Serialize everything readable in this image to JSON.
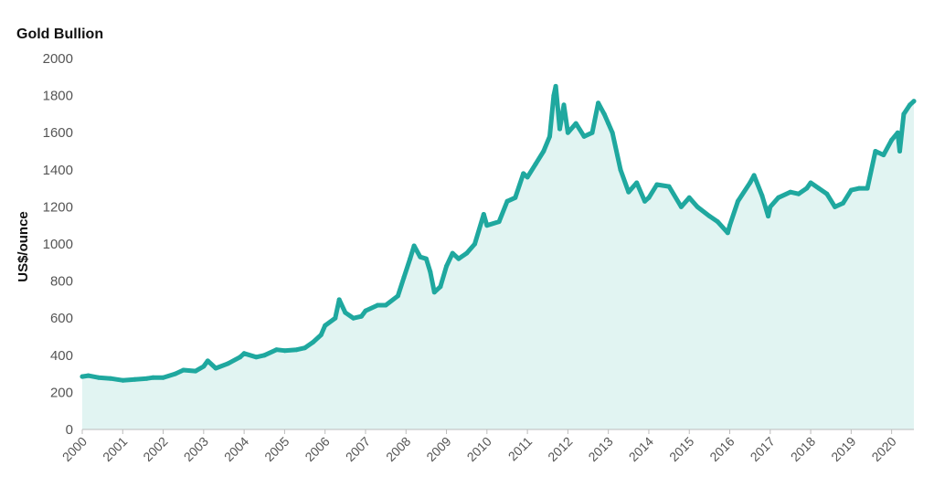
{
  "chart_data": {
    "type": "area",
    "title": "Gold Bullion",
    "xlabel": "",
    "ylabel": "US$/ounce",
    "ylim": [
      0,
      2000
    ],
    "yticks": [
      0,
      200,
      400,
      600,
      800,
      1000,
      1200,
      1400,
      1600,
      1800,
      2000
    ],
    "xlim": [
      2000.0,
      2020.55
    ],
    "xticks": [
      "2000",
      "2001",
      "2002",
      "2003",
      "2004",
      "2005",
      "2006",
      "2007",
      "2008",
      "2009",
      "2010",
      "2011",
      "2012",
      "2013",
      "2014",
      "2015",
      "2016",
      "2017",
      "2018",
      "2019",
      "2020"
    ],
    "grid": false,
    "legend": "none",
    "colors": {
      "line": "#1fa89f",
      "fill": "#c9ebe7"
    },
    "series": [
      {
        "x": [
          2000.0,
          2000.15,
          2000.4,
          2000.7,
          2001.0,
          2001.3,
          2001.6,
          2001.75,
          2002.0,
          2002.3,
          2002.5,
          2002.8,
          2003.0,
          2003.1,
          2003.3,
          2003.6,
          2003.9,
          2004.0,
          2004.3,
          2004.5,
          2004.8,
          2005.0,
          2005.3,
          2005.5,
          2005.7,
          2005.9,
          2006.0,
          2006.25,
          2006.35,
          2006.5,
          2006.7,
          2006.9,
          2007.0,
          2007.3,
          2007.5,
          2007.8,
          2007.95,
          2008.1,
          2008.2,
          2008.35,
          2008.5,
          2008.6,
          2008.7,
          2008.85,
          2009.0,
          2009.15,
          2009.3,
          2009.5,
          2009.7,
          2009.92,
          2010.0,
          2010.3,
          2010.5,
          2010.7,
          2010.9,
          2011.0,
          2011.2,
          2011.4,
          2011.55,
          2011.65,
          2011.7,
          2011.8,
          2011.9,
          2012.0,
          2012.2,
          2012.4,
          2012.6,
          2012.75,
          2012.9,
          2013.0,
          2013.1,
          2013.3,
          2013.5,
          2013.7,
          2013.9,
          2014.0,
          2014.2,
          2014.5,
          2014.8,
          2015.0,
          2015.2,
          2015.5,
          2015.7,
          2015.95,
          2016.0,
          2016.2,
          2016.5,
          2016.6,
          2016.8,
          2016.95,
          2017.0,
          2017.2,
          2017.5,
          2017.7,
          2017.9,
          2018.0,
          2018.2,
          2018.4,
          2018.6,
          2018.8,
          2019.0,
          2019.2,
          2019.4,
          2019.6,
          2019.8,
          2020.0,
          2020.15,
          2020.2,
          2020.3,
          2020.45,
          2020.55
        ],
        "values": [
          285,
          290,
          280,
          275,
          265,
          270,
          275,
          280,
          280,
          300,
          320,
          315,
          340,
          370,
          330,
          355,
          390,
          410,
          390,
          400,
          430,
          425,
          430,
          440,
          470,
          510,
          560,
          600,
          700,
          630,
          600,
          610,
          640,
          670,
          670,
          720,
          820,
          920,
          990,
          930,
          920,
          850,
          740,
          770,
          880,
          950,
          920,
          950,
          1000,
          1160,
          1100,
          1120,
          1230,
          1250,
          1380,
          1360,
          1430,
          1500,
          1580,
          1800,
          1850,
          1620,
          1750,
          1600,
          1650,
          1580,
          1600,
          1760,
          1700,
          1650,
          1600,
          1400,
          1280,
          1330,
          1230,
          1250,
          1320,
          1310,
          1200,
          1250,
          1200,
          1150,
          1120,
          1060,
          1100,
          1230,
          1330,
          1370,
          1260,
          1150,
          1200,
          1250,
          1280,
          1270,
          1300,
          1330,
          1300,
          1270,
          1200,
          1220,
          1290,
          1300,
          1300,
          1500,
          1480,
          1560,
          1600,
          1500,
          1700,
          1750,
          1770
        ]
      }
    ]
  }
}
